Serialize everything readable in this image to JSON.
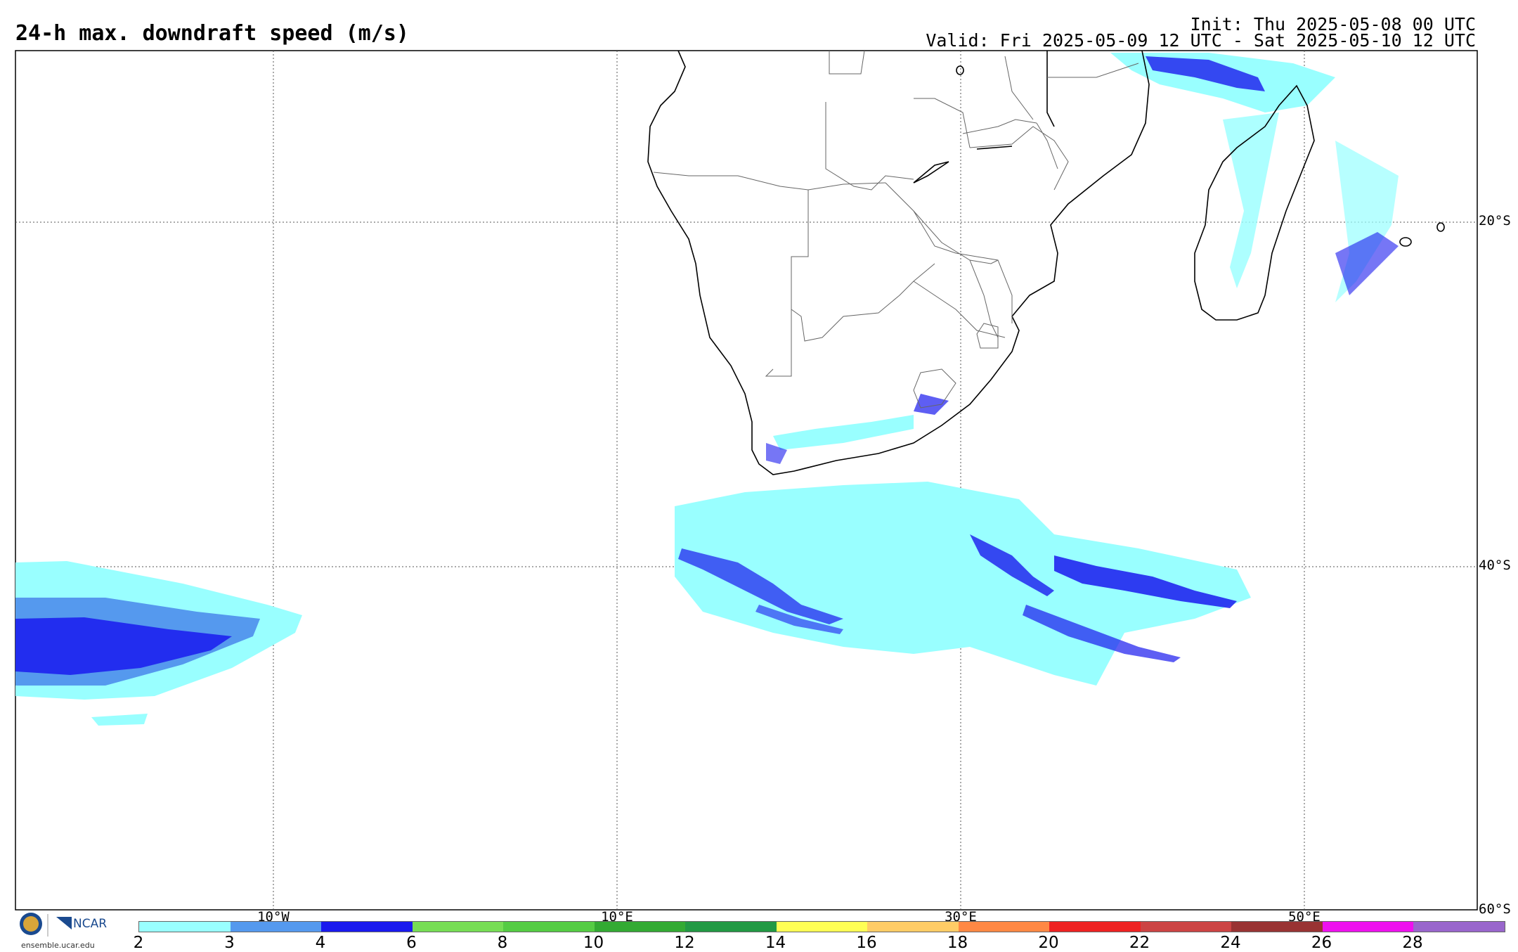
{
  "header": {
    "title": "24-h max. downdraft speed (m/s)",
    "init": "Init: Thu 2025-05-08 00 UTC",
    "valid": "Valid: Fri 2025-05-09 12 UTC - Sat 2025-05-10 12 UTC"
  },
  "axes": {
    "lat_labels": [
      "20°S",
      "40°S",
      "60°S"
    ],
    "lon_labels": [
      "10°W",
      "10°E",
      "30°E",
      "50°E"
    ]
  },
  "legend": {
    "ticks": [
      "2",
      "3",
      "4",
      "6",
      "8",
      "10",
      "12",
      "14",
      "16",
      "18",
      "20",
      "22",
      "24",
      "26",
      "28"
    ],
    "colors": [
      "#99ffff",
      "#5599ee",
      "#1a1aee",
      "#77dd55",
      "#55cc44",
      "#33aa33",
      "#229944",
      "#ffff55",
      "#ffcc66",
      "#ff8844",
      "#ee2222",
      "#cc4444",
      "#993333",
      "#ee11ee",
      "#9966cc"
    ]
  },
  "branding": {
    "org": "NCAR",
    "url": "ensemble.ucar.edu"
  }
}
